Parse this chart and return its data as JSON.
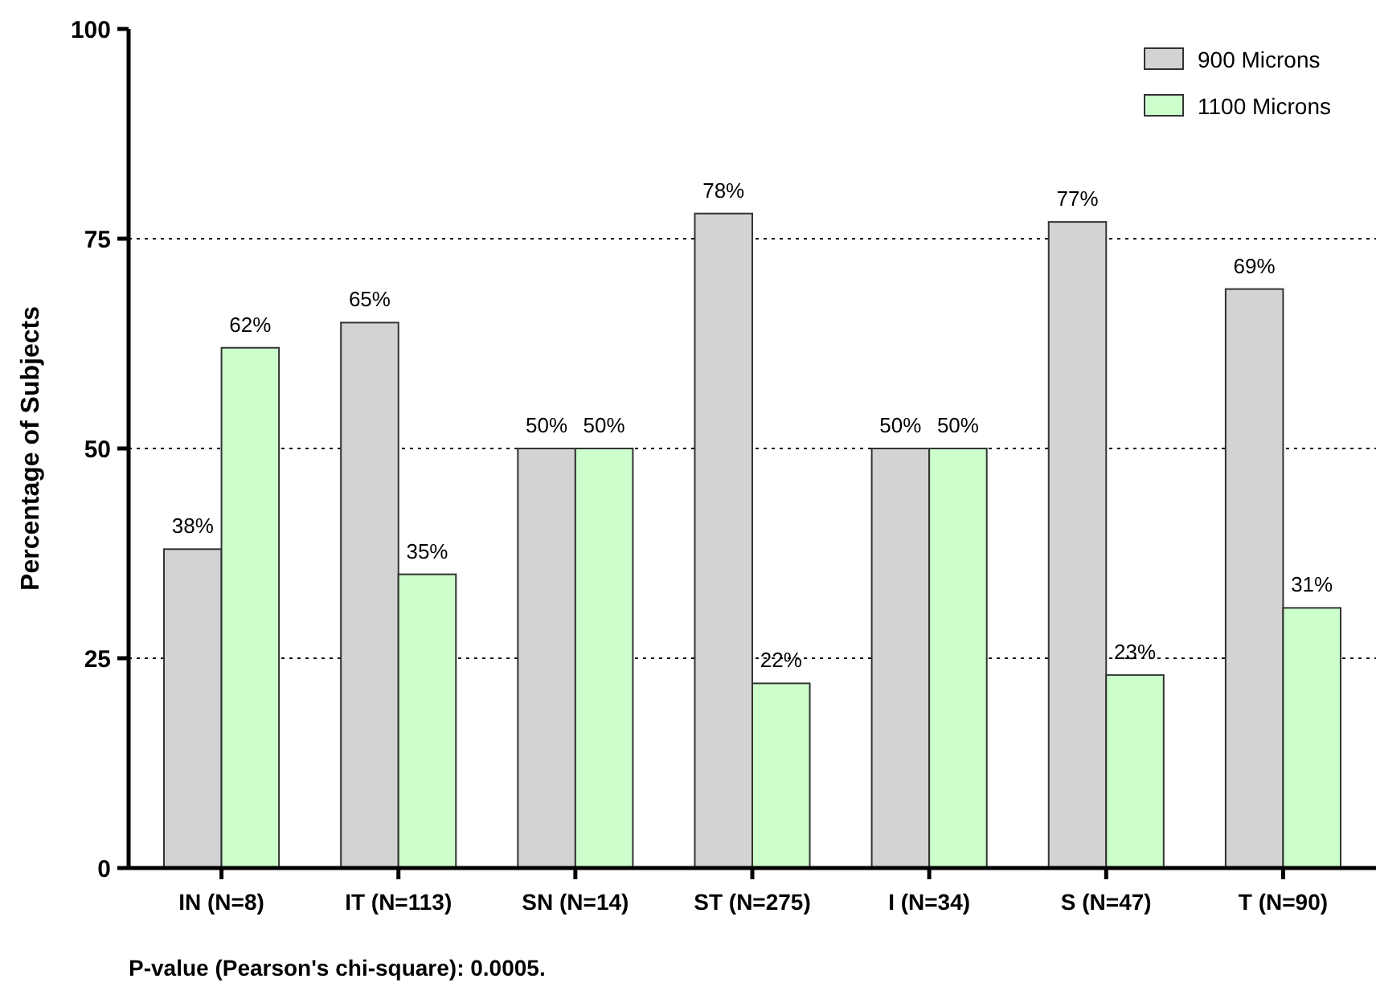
{
  "chart_data": {
    "type": "bar",
    "ylabel": "Percentage of Subjects",
    "categories": [
      "IN (N=8)",
      "IT (N=113)",
      "SN (N=14)",
      "ST (N=275)",
      "I (N=34)",
      "S (N=47)",
      "T (N=90)"
    ],
    "series": [
      {
        "name": "900 Microns",
        "color": "#d3d3d3",
        "values": [
          38,
          65,
          50,
          78,
          50,
          77,
          69
        ],
        "value_labels": [
          "38%",
          "65%",
          "50%",
          "78%",
          "50%",
          "77%",
          "69%"
        ]
      },
      {
        "name": "1100 Microns",
        "color": "#ccffcc",
        "values": [
          62,
          35,
          50,
          22,
          50,
          23,
          31
        ],
        "value_labels": [
          "62%",
          "35%",
          "50%",
          "22%",
          "50%",
          "23%",
          "31%"
        ]
      }
    ],
    "ylim": [
      0,
      100
    ],
    "yticks": [
      0,
      25,
      50,
      75,
      100
    ],
    "grid": "y",
    "legend": "top right",
    "annotations": [
      "P-value (Pearson's chi-square): 0.0005."
    ]
  }
}
